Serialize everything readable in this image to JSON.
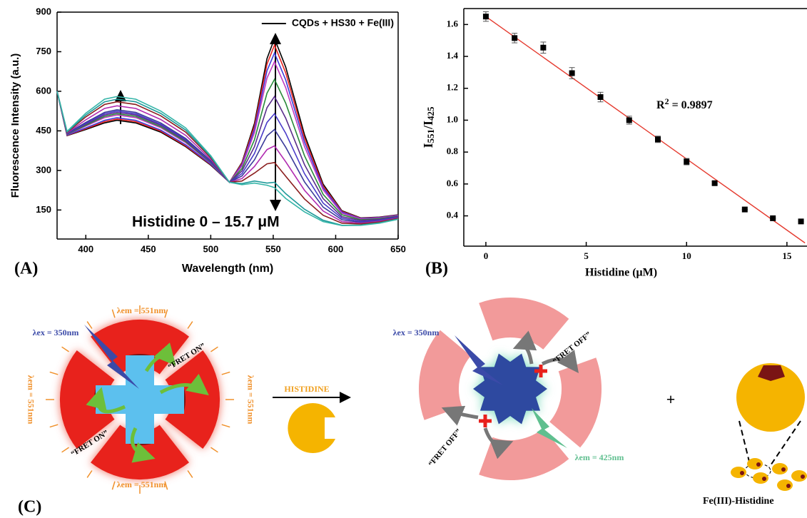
{
  "chart_data": [
    {
      "type": "line",
      "panel_label": "(A)",
      "ylabel": "Fluorescence Intensity (a.u.)",
      "xlabel": "Wavelength (nm)",
      "annotation": "Histidine 0 – 15.7 μM",
      "x": [
        377,
        385,
        400,
        415,
        425,
        440,
        460,
        480,
        500,
        515,
        525,
        535,
        545,
        551,
        560,
        575,
        590,
        605,
        620,
        635,
        650
      ],
      "xlim": [
        377,
        650
      ],
      "ylim": [
        40,
        900
      ],
      "xticks": [
        400,
        450,
        500,
        550,
        600,
        650
      ],
      "yticks": [
        150,
        300,
        450,
        600,
        750,
        900
      ],
      "legend": "upper right",
      "series": [
        {
          "name": "CQDs + HS30 + Fe(III)",
          "color": "#000000",
          "values": [
            600,
            432,
            455,
            480,
            490,
            480,
            445,
            390,
            320,
            255,
            330,
            478,
            724,
            800,
            692,
            436,
            248,
            147,
            120,
            123,
            132
          ]
        },
        {
          "color": "#e8231f",
          "values": [
            600,
            433,
            458,
            485,
            495,
            485,
            449,
            393,
            322,
            255,
            327,
            468,
            703,
            775,
            670,
            423,
            241,
            145,
            119,
            122,
            131
          ]
        },
        {
          "color": "#3b3bd9",
          "values": [
            600,
            434,
            461,
            490,
            500,
            490,
            453,
            397,
            324,
            255,
            322,
            456,
            678,
            745,
            643,
            408,
            234,
            142,
            118,
            121,
            130
          ]
        },
        {
          "color": "#c03bc0",
          "values": [
            600,
            436,
            468,
            500,
            510,
            500,
            462,
            405,
            328,
            255,
            317,
            443,
            650,
            712,
            614,
            391,
            226,
            138,
            116,
            119,
            129
          ]
        },
        {
          "color": "#2a8a3a",
          "values": [
            600,
            437,
            471,
            505,
            515,
            505,
            466,
            409,
            330,
            255,
            307,
            416,
            593,
            645,
            555,
            356,
            209,
            132,
            113,
            117,
            127
          ]
        },
        {
          "color": "#5a2d8c",
          "values": [
            600,
            438,
            475,
            510,
            520,
            510,
            471,
            413,
            332,
            255,
            298,
            390,
            538,
            580,
            498,
            322,
            193,
            125,
            110,
            114,
            126
          ]
        },
        {
          "color": "#4a3bc8",
          "values": [
            600,
            439,
            478,
            515,
            525,
            515,
            475,
            417,
            334,
            255,
            288,
            364,
            482,
            515,
            441,
            288,
            176,
            119,
            106,
            111,
            124
          ]
        },
        {
          "color": "#3a3a9a",
          "values": [
            600,
            440,
            482,
            520,
            530,
            520,
            480,
            421,
            336,
            255,
            279,
            340,
            431,
            455,
            388,
            257,
            161,
            113,
            103,
            109,
            122
          ]
        },
        {
          "color": "#b02ab0",
          "values": [
            600,
            442,
            492,
            535,
            545,
            535,
            493,
            433,
            342,
            255,
            269,
            315,
            379,
            393,
            333,
            225,
            146,
            106,
            100,
            107,
            120
          ]
        },
        {
          "color": "#8b1e1e",
          "values": [
            600,
            444,
            503,
            550,
            560,
            550,
            507,
            445,
            348,
            255,
            260,
            290,
            325,
            330,
            278,
            192,
            130,
            100,
            97,
            104,
            118
          ]
        },
        {
          "color": "#1f9a9a",
          "values": [
            600,
            446,
            510,
            560,
            570,
            560,
            516,
            453,
            352,
            255,
            250,
            260,
            252,
            255,
            212,
            153,
            111,
            92,
            93,
            101,
            116
          ]
        },
        {
          "color": "#35b5a8",
          "values": [
            600,
            448,
            517,
            570,
            580,
            570,
            525,
            461,
            356,
            255,
            246,
            252,
            244,
            235,
            194,
            143,
            106,
            91,
            92,
            100,
            115
          ]
        }
      ]
    },
    {
      "type": "scatter",
      "panel_label": "(B)",
      "ylabel": [
        "I",
        "551",
        "/I",
        "425"
      ],
      "xlabel": "Histidine (μM)",
      "annotation": [
        "R",
        "2",
        " = 0.9897"
      ],
      "x": [
        0,
        1.43,
        2.86,
        4.29,
        5.71,
        7.14,
        8.57,
        10,
        11.4,
        12.9,
        14.3,
        15.7
      ],
      "values": [
        1.65,
        1.515,
        1.455,
        1.295,
        1.145,
        1.0,
        0.88,
        0.74,
        0.605,
        0.44,
        0.385,
        0.365
      ],
      "errors": [
        0.03,
        0.03,
        0.035,
        0.035,
        0.03,
        0.025,
        0.02,
        0.02,
        0.01,
        0,
        0,
        0
      ],
      "color": "#000000",
      "fit": {
        "color": "#e53a2e",
        "x": [
          0,
          15.9
        ],
        "values": [
          1.65,
          0.23
        ]
      },
      "xlim": [
        -1.1,
        16
      ],
      "ylim": [
        0.21,
        1.7
      ],
      "xticks": [
        0,
        5,
        10,
        15
      ],
      "yticks": [
        0.4,
        0.6,
        0.8,
        {
          "value": 1,
          "label": "1.0"
        },
        1.2,
        1.4,
        1.6
      ]
    }
  ],
  "diagram": {
    "panel_label": "(C)",
    "em_551": [
      "λem = 551nm",
      "λem = 551nm",
      "λem = 551nm",
      "λem = 551nm"
    ],
    "ex_left": "λex = 350nm",
    "fret_on": [
      "“FRET ON”",
      "“FRET ON”"
    ],
    "reagent": "HISTIDINE",
    "ex_right": "λex = 350nm",
    "fret_off": [
      "“FRET OFF”",
      "“FRET OFF”"
    ],
    "em_425": "λem = 425nm",
    "plus": "+",
    "product": "Fe(III)-Histidine"
  }
}
